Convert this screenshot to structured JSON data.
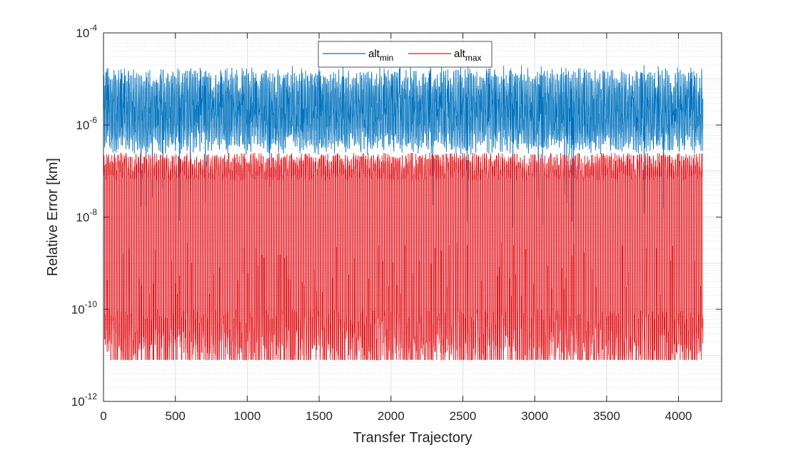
{
  "chart_data": {
    "type": "line",
    "title": "",
    "xlabel": "Transfer Trajectory",
    "ylabel": "Relative Error [km]",
    "xscale": "linear",
    "yscale": "log",
    "xlim": [
      0,
      4300
    ],
    "ylim": [
      1e-12,
      0.0001
    ],
    "x_ticks": [
      "0",
      "500",
      "1000",
      "1500",
      "2000",
      "2500",
      "3000",
      "3500",
      "4000"
    ],
    "y_ticks": [
      {
        "base": "10",
        "exp": "-12"
      },
      {
        "base": "10",
        "exp": "-10"
      },
      {
        "base": "10",
        "exp": "-8"
      },
      {
        "base": "10",
        "exp": "-6"
      },
      {
        "base": "10",
        "exp": "-4"
      }
    ],
    "grid": true,
    "minor_grid": true,
    "legend_position": "top-center",
    "n_points": 4170,
    "series": [
      {
        "name_main": "alt",
        "name_sub": "min",
        "color": "#0072BD",
        "typical_range": [
          4e-07,
          1e-05
        ],
        "peak_max": 2e-05,
        "occasional_dips_to": 5e-09
      },
      {
        "name_main": "alt",
        "name_sub": "max",
        "color": "#E3161C",
        "plateau_level": 2.5e-07,
        "floor_level": 8e-12,
        "typical_low_band": [
          1e-11,
          1e-10
        ],
        "mid_excursions_to": 3e-09
      }
    ]
  }
}
